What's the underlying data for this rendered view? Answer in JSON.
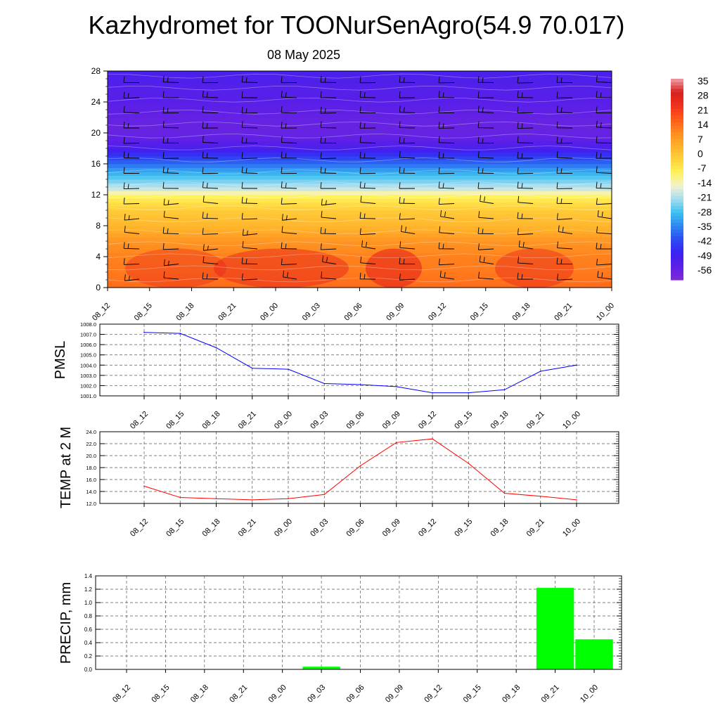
{
  "title": "Kazhydromet for TOONurSenAgro(54.9 70.017)",
  "subtitle": "08 May 2025",
  "time_labels": [
    "08_12",
    "08_15",
    "08_18",
    "08_21",
    "09_00",
    "09_03",
    "09_06",
    "09_09",
    "09_12",
    "09_15",
    "09_18",
    "09_21",
    "10_00"
  ],
  "chart_data": [
    {
      "type": "heatmap",
      "name": "temperature-cross-section",
      "x": [
        "08_12",
        "08_15",
        "08_18",
        "08_21",
        "09_00",
        "09_03",
        "09_06",
        "09_09",
        "09_12",
        "09_15",
        "09_18",
        "09_21",
        "10_00"
      ],
      "ylim": [
        0,
        28
      ],
      "ytick_labels": [
        "0",
        "4",
        "8",
        "12",
        "16",
        "20",
        "24",
        "28"
      ],
      "colorbar_labels": [
        "35",
        "28",
        "21",
        "14",
        "7",
        "0",
        "-7",
        "-14",
        "-21",
        "-28",
        "-35",
        "-42",
        "-49",
        "-56"
      ],
      "colorbar_range": [
        -60,
        38
      ],
      "colorbar_colors": [
        "#7f2bd6",
        "#5b1fe8",
        "#3a22f2",
        "#2c4cf2",
        "#2f86f2",
        "#3cc0f0",
        "#a4dcf0",
        "#f2f2d0",
        "#fff25a",
        "#ffd13a",
        "#ffb02a",
        "#ff8a1f",
        "#ff5a18",
        "#f0301c",
        "#d8201c",
        "#f0a0a8"
      ],
      "temperature_profile": {
        "heights": [
          0,
          2,
          4,
          6,
          8,
          10,
          12,
          12.5,
          13.5,
          15,
          16.5,
          18,
          19,
          20.5,
          22,
          24,
          26,
          28
        ],
        "values": [
          16,
          14,
          13,
          10,
          4,
          0,
          -9,
          -16,
          -22,
          -30,
          -40,
          -50,
          -54,
          -56,
          -55,
          -53,
          -52,
          -50
        ]
      },
      "wind_barbs": "present",
      "grid": false
    },
    {
      "type": "line",
      "name": "pmsl",
      "ylabel": "PMSL",
      "x": [
        "08_12",
        "08_15",
        "08_18",
        "08_21",
        "09_00",
        "09_03",
        "09_06",
        "09_09",
        "09_12",
        "09_15",
        "09_18",
        "09_21",
        "10_00"
      ],
      "ytick_labels": [
        "1001.0",
        "1002.0",
        "1003.0",
        "1004.0",
        "1005.0",
        "1006.0",
        "1007.0",
        "1008.0"
      ],
      "ylim": [
        1001.0,
        1008.0
      ],
      "series": [
        {
          "values": [
            1007.2,
            1007.1,
            1005.7,
            1003.7,
            1003.6,
            1002.2,
            1002.1,
            1001.9,
            1001.3,
            1001.3,
            1001.6,
            1003.4,
            1004.0
          ],
          "color": "#0000ff"
        }
      ],
      "grid": true
    },
    {
      "type": "line",
      "name": "temp2m",
      "ylabel": "TEMP at 2 M",
      "x": [
        "08_12",
        "08_15",
        "08_18",
        "08_21",
        "09_00",
        "09_03",
        "09_06",
        "09_09",
        "09_12",
        "09_15",
        "09_18",
        "09_21",
        "10_00"
      ],
      "ytick_labels": [
        "12.0",
        "14.0",
        "16.0",
        "18.0",
        "20.0",
        "22.0",
        "24.0"
      ],
      "ylim": [
        12.0,
        24.0
      ],
      "series": [
        {
          "values": [
            14.9,
            13.0,
            12.8,
            12.6,
            12.8,
            13.5,
            18.3,
            22.2,
            22.8,
            18.7,
            13.7,
            13.2,
            12.6
          ],
          "color": "#ff0000"
        }
      ],
      "grid": true
    },
    {
      "type": "bar",
      "name": "precip",
      "ylabel": "PRECIP, mm",
      "categories": [
        "08_12",
        "08_15",
        "08_18",
        "08_21",
        "09_00",
        "09_03",
        "09_06",
        "09_09",
        "09_12",
        "09_15",
        "09_18",
        "09_21",
        "10_00"
      ],
      "ytick_labels": [
        "0.0",
        "0.2",
        "0.4",
        "0.6",
        "0.8",
        "1.0",
        "1.2",
        "1.4"
      ],
      "ylim": [
        0.0,
        1.4
      ],
      "values": [
        0,
        0,
        0,
        0,
        0,
        0.04,
        0,
        0,
        0,
        0,
        0,
        1.22,
        0.45
      ],
      "color": "#00ff00",
      "grid": true
    }
  ]
}
